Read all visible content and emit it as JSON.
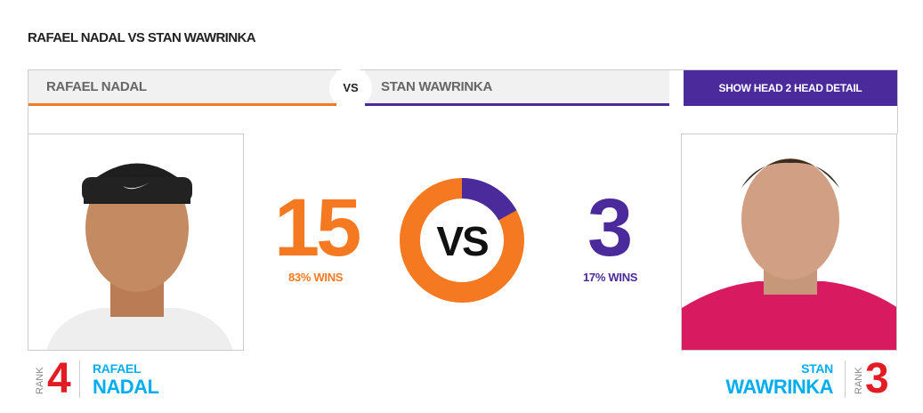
{
  "title": "RAFAEL NADAL VS STAN WAWRINKA",
  "tabs": {
    "player1": "RAFAEL NADAL",
    "vs": "VS",
    "player2": "STAN WAWRINKA",
    "detail_button": "SHOW HEAD 2 HEAD DETAIL"
  },
  "colors": {
    "player1": "#f47920",
    "player2": "#4b2a9b",
    "rank": "#e31b23",
    "name": "#00aeef"
  },
  "h2h": {
    "player1_wins": "15",
    "player1_pct": "83% WINS",
    "player2_wins": "3",
    "player2_pct": "17% WINS",
    "center": "VS",
    "player1_fraction": 0.83,
    "player2_fraction": 0.17
  },
  "player1": {
    "rank_label": "RANK",
    "rank": "4",
    "first": "RAFAEL",
    "last": "NADAL"
  },
  "player2": {
    "rank_label": "RANK",
    "rank": "3",
    "first": "STAN",
    "last": "WAWRINKA"
  }
}
